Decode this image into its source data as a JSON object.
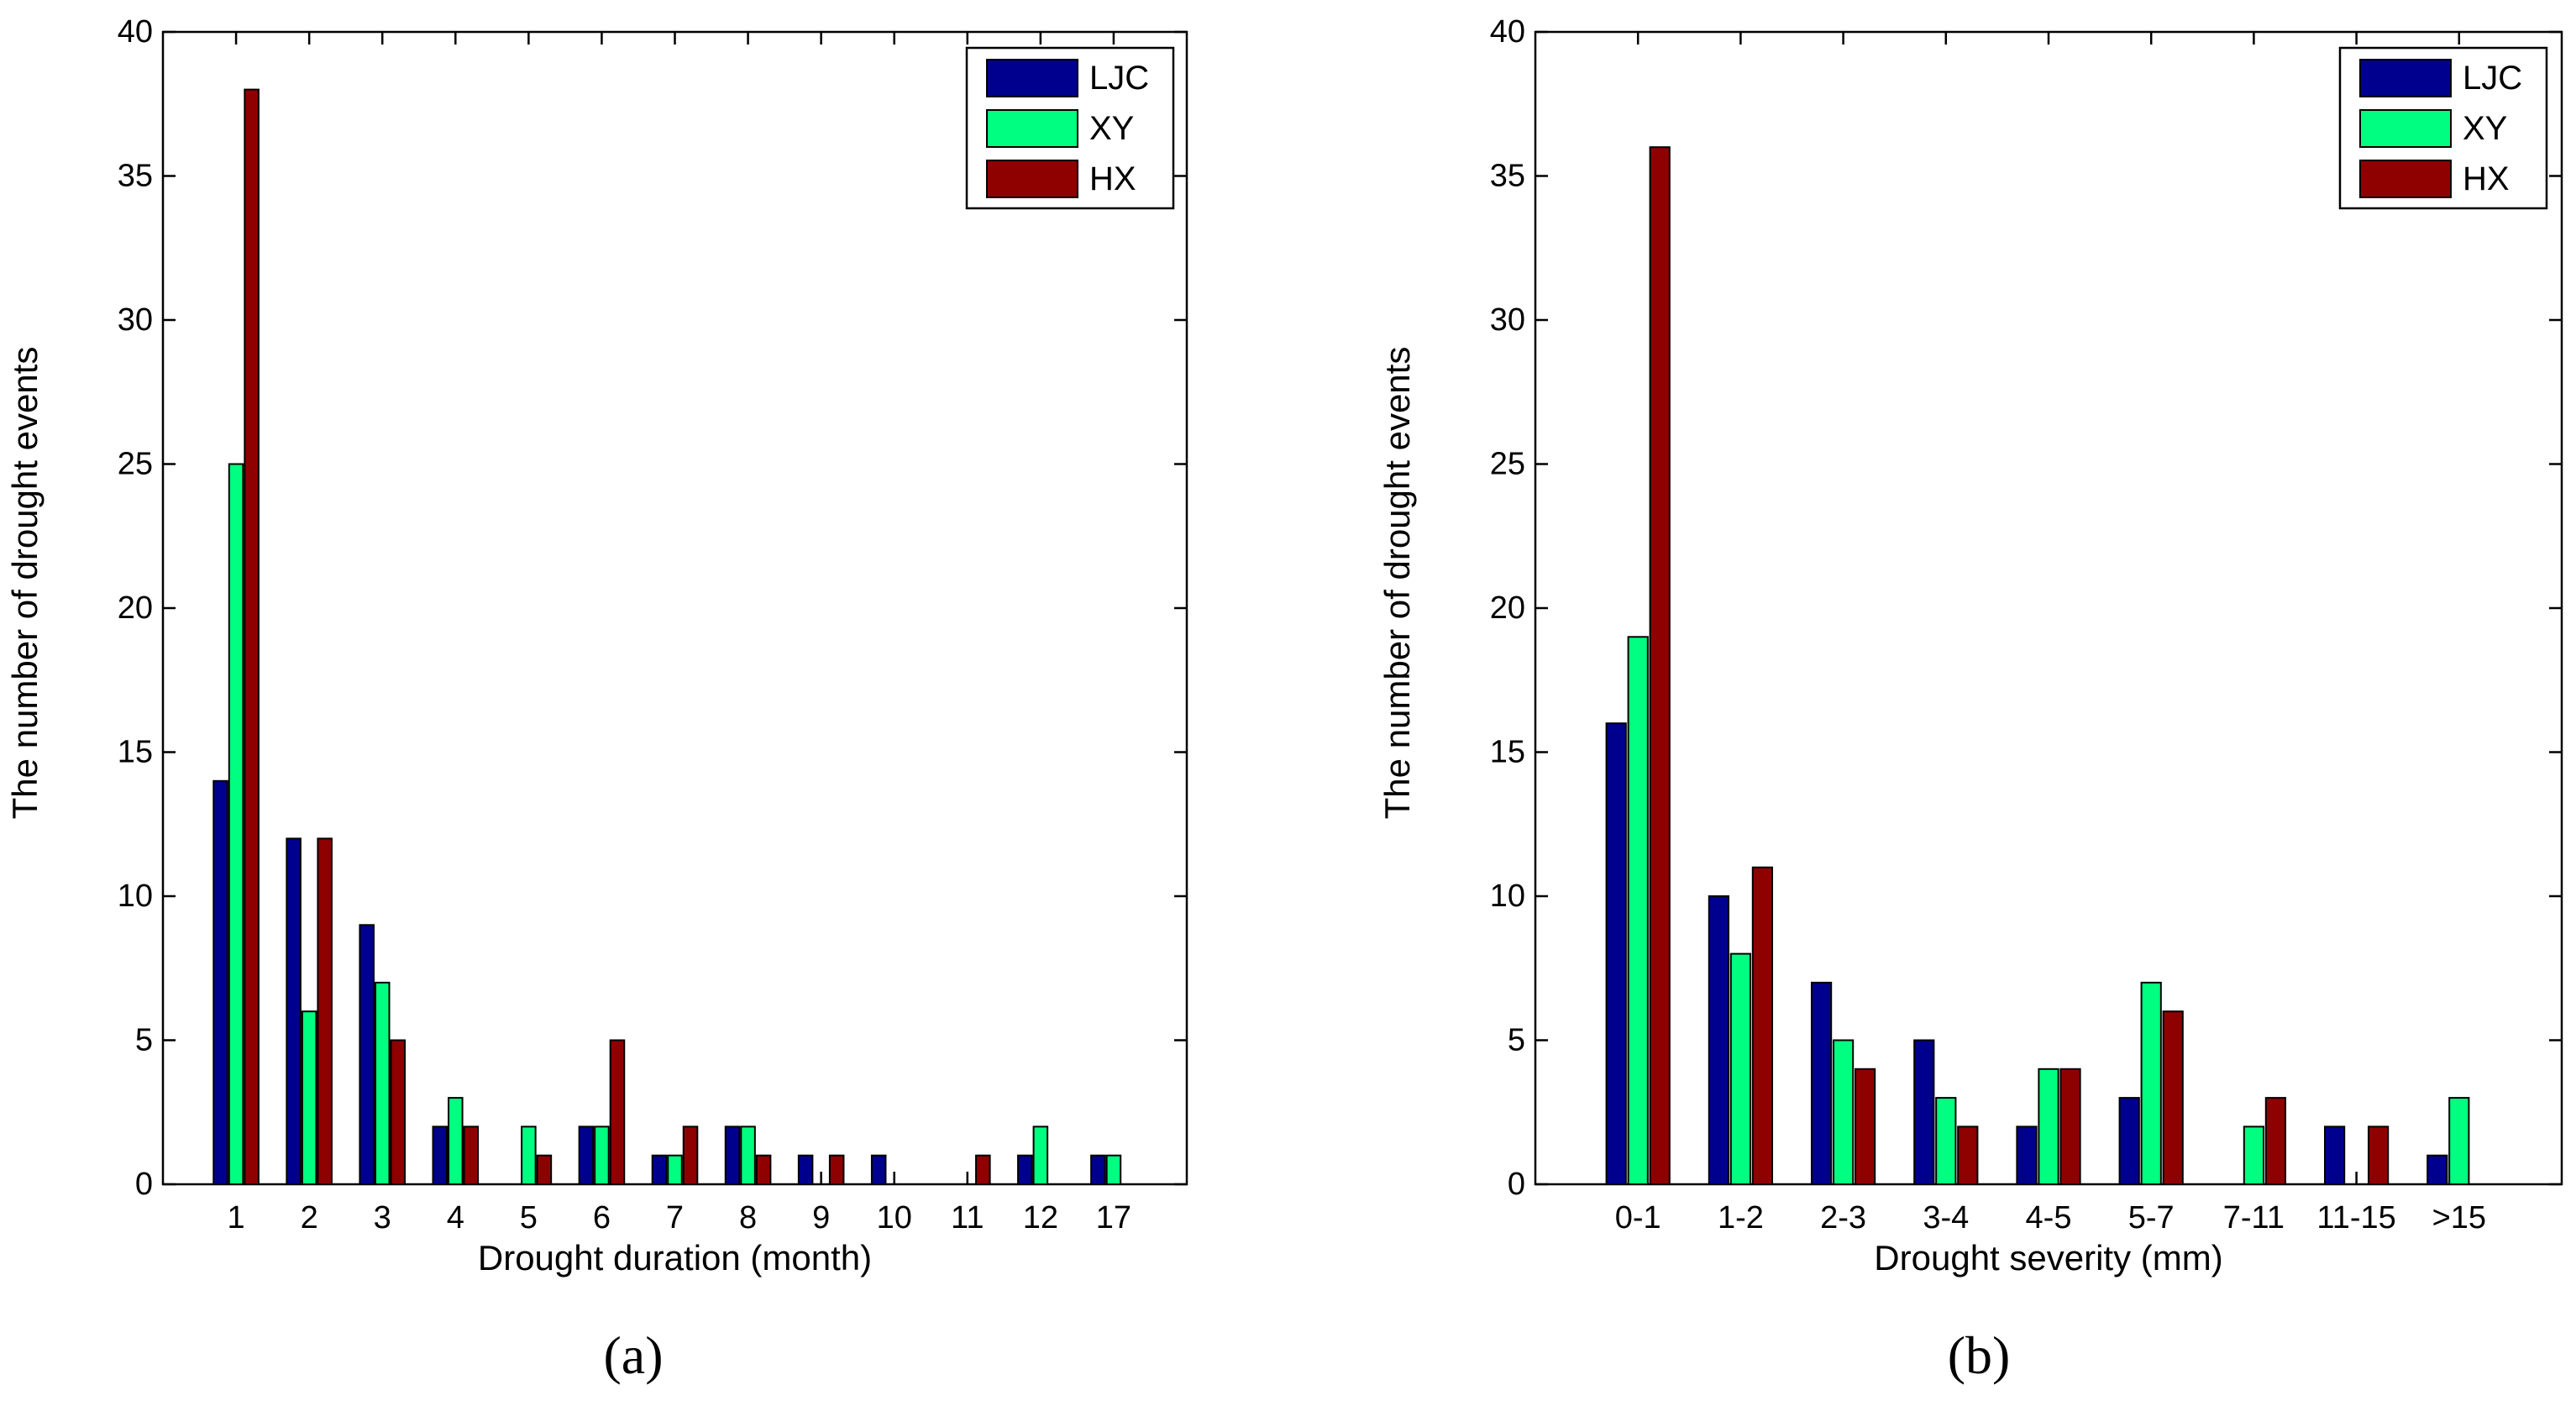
{
  "colors": {
    "LJC": "#00008f",
    "XY": "#00ff80",
    "HX": "#8f0000"
  },
  "chart_data": [
    {
      "panel": "(a)",
      "type": "bar",
      "xlabel": "Drought duration (month)",
      "ylabel": "The number of drought events",
      "ylim": [
        0,
        40
      ],
      "yticks": [
        0,
        5,
        10,
        15,
        20,
        25,
        30,
        35,
        40
      ],
      "grid": false,
      "legend_position": "top-right",
      "categories": [
        "1",
        "2",
        "3",
        "4",
        "5",
        "6",
        "7",
        "8",
        "9",
        "10",
        "11",
        "12",
        "17"
      ],
      "series": [
        {
          "name": "LJC",
          "values": [
            14,
            12,
            9,
            2,
            0,
            2,
            1,
            2,
            1,
            1,
            0,
            1,
            1
          ]
        },
        {
          "name": "XY",
          "values": [
            25,
            6,
            7,
            3,
            2,
            2,
            1,
            2,
            0,
            0,
            0,
            2,
            1
          ]
        },
        {
          "name": "HX",
          "values": [
            38,
            12,
            5,
            2,
            1,
            5,
            2,
            1,
            1,
            0,
            1,
            0,
            0
          ]
        }
      ]
    },
    {
      "panel": "(b)",
      "type": "bar",
      "xlabel": "Drought severity (mm)",
      "ylabel": "The number of drought events",
      "ylim": [
        0,
        40
      ],
      "yticks": [
        0,
        5,
        10,
        15,
        20,
        25,
        30,
        35,
        40
      ],
      "grid": false,
      "legend_position": "top-right",
      "categories": [
        "0-1",
        "1-2",
        "2-3",
        "3-4",
        "4-5",
        "5-7",
        "7-11",
        "11-15",
        ">15"
      ],
      "series": [
        {
          "name": "LJC",
          "values": [
            16,
            10,
            7,
            5,
            2,
            3,
            0,
            2,
            1
          ]
        },
        {
          "name": "XY",
          "values": [
            19,
            8,
            5,
            3,
            4,
            7,
            2,
            0,
            3
          ]
        },
        {
          "name": "HX",
          "values": [
            36,
            11,
            4,
            2,
            4,
            6,
            3,
            2,
            0
          ]
        }
      ]
    }
  ]
}
